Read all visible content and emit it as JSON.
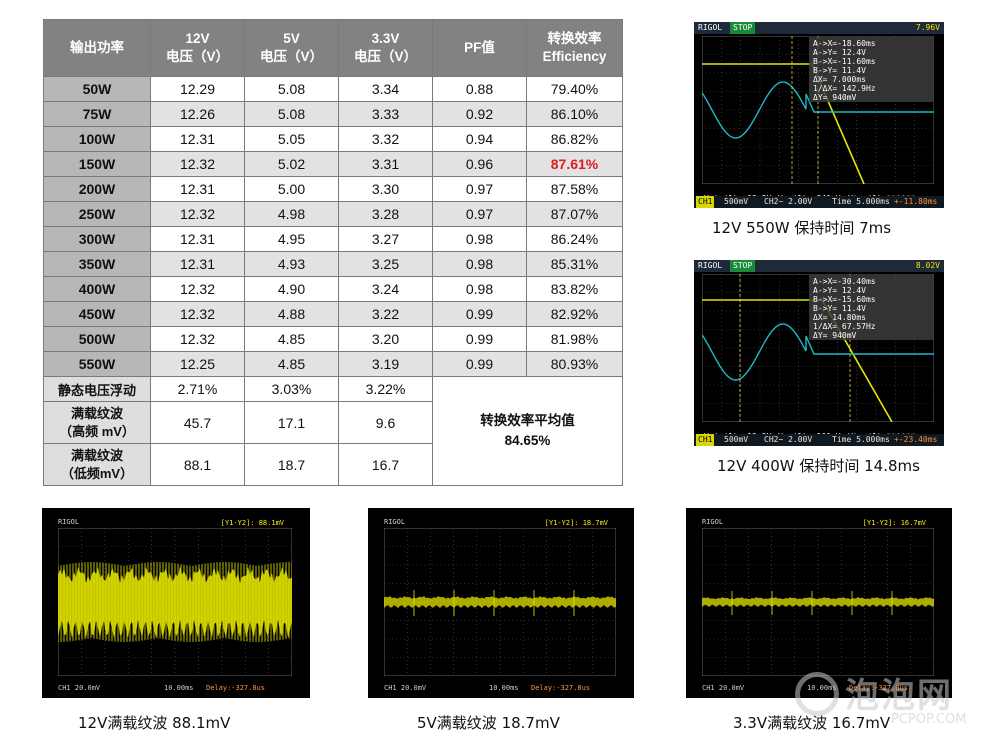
{
  "table": {
    "headers": [
      [
        "输出功率"
      ],
      [
        "12V",
        "电压（V）"
      ],
      [
        "5V",
        "电压（V）"
      ],
      [
        "3.3V",
        "电压（V）"
      ],
      [
        "PF值"
      ],
      [
        "转换效率",
        "Efficiency"
      ]
    ],
    "rows": [
      [
        "50W",
        "12.29",
        "5.08",
        "3.34",
        "0.88",
        "79.40%"
      ],
      [
        "75W",
        "12.26",
        "5.08",
        "3.33",
        "0.92",
        "86.10%"
      ],
      [
        "100W",
        "12.31",
        "5.05",
        "3.32",
        "0.94",
        "86.82%"
      ],
      [
        "150W",
        "12.32",
        "5.02",
        "3.31",
        "0.96",
        "87.61%"
      ],
      [
        "200W",
        "12.31",
        "5.00",
        "3.30",
        "0.97",
        "87.58%"
      ],
      [
        "250W",
        "12.32",
        "4.98",
        "3.28",
        "0.97",
        "87.07%"
      ],
      [
        "300W",
        "12.31",
        "4.95",
        "3.27",
        "0.98",
        "86.24%"
      ],
      [
        "350W",
        "12.31",
        "4.93",
        "3.25",
        "0.98",
        "85.31%"
      ],
      [
        "400W",
        "12.32",
        "4.90",
        "3.24",
        "0.98",
        "83.82%"
      ],
      [
        "450W",
        "12.32",
        "4.88",
        "3.22",
        "0.99",
        "82.92%"
      ],
      [
        "500W",
        "12.32",
        "4.85",
        "3.20",
        "0.99",
        "81.98%"
      ],
      [
        "550W",
        "12.25",
        "4.85",
        "3.19",
        "0.99",
        "80.93%"
      ]
    ],
    "highlight_color": "#e21b1b",
    "static_row": {
      "label": "静态电压浮动",
      "values": [
        "2.71%",
        "3.03%",
        "3.22%"
      ]
    },
    "ripple_high": {
      "label": [
        "满载纹波",
        "（高频 mV）"
      ],
      "values": [
        "45.7",
        "17.1",
        "9.6"
      ]
    },
    "ripple_low": {
      "label": [
        "满载纹波",
        "（低频mV）"
      ],
      "values": [
        "88.1",
        "18.7",
        "16.7"
      ]
    },
    "average": {
      "label": "转换效率平均值",
      "value": "84.65%"
    }
  },
  "scopes_top": [
    {
      "brand": "RIGOL",
      "state": "STOP",
      "trig": "7.96V",
      "info": [
        "A->X=-18.60ms",
        "A->Y= 12.4V",
        "B->X=-11.60ms",
        "B->Y= 11.4V",
        "ΔX= 7.000ms",
        "1/ΔX= 142.9Hz",
        "ΔY= 940mV"
      ],
      "meas": [
        "Vmin(1)= 12.2V",
        "Vpp(1)= 340mV",
        "Vtop(1)=******"
      ],
      "bottom": [
        "CH1",
        "500mV",
        "CH2~ 2.00V",
        "Time 5.000ms",
        "+-11.80ms"
      ],
      "caption": "12V 550W 保持时间  7ms"
    },
    {
      "brand": "RIGOL",
      "state": "STOP",
      "trig": "8.02V",
      "info": [
        "A->X=-30.40ms",
        "A->Y= 12.4V",
        "B->X=-15.60ms",
        "B->Y= 11.4V",
        "ΔX= 14.80ms",
        "1/ΔX= 67.57Hz",
        "ΔY= 940mV"
      ],
      "meas": [
        "Vmin(1)= 12.3V",
        "Vpp(1)= 100mV",
        "Vtop(1)=******"
      ],
      "bottom": [
        "CH1",
        "500mV",
        "CH2~ 2.00V",
        "Time 5.000ms",
        "+-23.40ms"
      ],
      "caption": "12V 400W 保持时间  14.8ms"
    }
  ],
  "scopes_bottom": [
    {
      "yy": "[Y1-Y2]: 88.1mV",
      "ch": "CH1 20.0mV",
      "time": "10.00ms",
      "delay": "Delay:-327.8us",
      "caption": "12V满载纹波  88.1mV"
    },
    {
      "yy": "[Y1-Y2]: 18.7mV",
      "ch": "CH1 20.0mV",
      "time": "10.00ms",
      "delay": "Delay:-327.8us",
      "caption": "5V满载纹波  18.7mV"
    },
    {
      "yy": "[Y1-Y2]: 16.7mV",
      "ch": "CH1 20.0mV",
      "time": "10.00ms",
      "delay": "Delay:-327.8us",
      "caption": "3.3V满载纹波  16.7mV"
    }
  ],
  "watermark": {
    "name": "泡泡网",
    "site": "PCPOP.COM"
  },
  "colors": {
    "ch1": "#e6e600",
    "ch2": "#1fb8c8",
    "grid": "#555555"
  }
}
